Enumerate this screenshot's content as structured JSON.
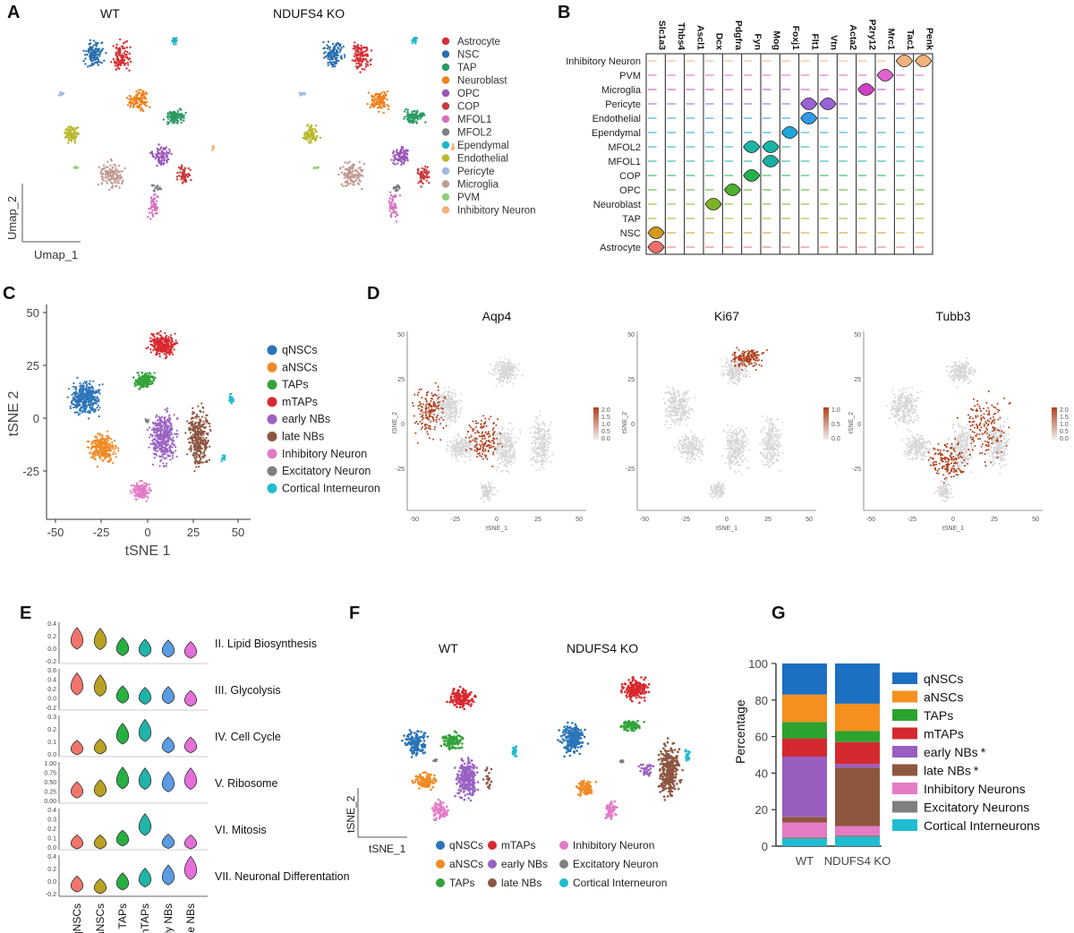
{
  "panels": {
    "A": {
      "label": "A",
      "titles": [
        "WT",
        "NDUFS4 KO"
      ],
      "xlabel": "Umap_1",
      "ylabel": "Umap_2",
      "legend": [
        {
          "name": "Astrocyte",
          "color": "#d62e35"
        },
        {
          "name": "NSC",
          "color": "#2a6fae"
        },
        {
          "name": "TAP",
          "color": "#2a9a62"
        },
        {
          "name": "Neuroblast",
          "color": "#f07f1a"
        },
        {
          "name": "OPC",
          "color": "#9a55b8"
        },
        {
          "name": "COP",
          "color": "#c93a3a"
        },
        {
          "name": "MFOL1",
          "color": "#d66fbf"
        },
        {
          "name": "MFOL2",
          "color": "#7b7f82"
        },
        {
          "name": "Ependymal",
          "color": "#20b6c6"
        },
        {
          "name": "Endothelial",
          "color": "#b7b92c"
        },
        {
          "name": "Pericyte",
          "color": "#9fbadf"
        },
        {
          "name": "Microglia",
          "color": "#c19b92"
        },
        {
          "name": "PVM",
          "color": "#8fd07a"
        },
        {
          "name": "Inhibitory Neuron",
          "color": "#f2b27a"
        }
      ]
    },
    "B": {
      "label": "B",
      "genes": [
        "Slc1a3",
        "Thbs4",
        "Ascl1",
        "Dcx",
        "Pdgfra",
        "Fyn",
        "Mog",
        "Foxj1",
        "Flt1",
        "Vtn",
        "Acta2",
        "P2ry12",
        "Mrc1",
        "Tac1",
        "Penk"
      ],
      "rows": [
        {
          "name": "Inhibitory Neuron",
          "color": "#f2b27a",
          "peaks": [
            14,
            13
          ]
        },
        {
          "name": "PVM",
          "color": "#e063d0",
          "peaks": [
            12
          ]
        },
        {
          "name": "Microglia",
          "color": "#d13fc4",
          "peaks": [
            11
          ]
        },
        {
          "name": "Pericyte",
          "color": "#9a62d6",
          "peaks": [
            9,
            8
          ]
        },
        {
          "name": "Endothelial",
          "color": "#2f9be6",
          "peaks": [
            8
          ]
        },
        {
          "name": "Ependymal",
          "color": "#1fa7d9",
          "peaks": [
            7
          ]
        },
        {
          "name": "MFOL2",
          "color": "#1bb5a6",
          "peaks": [
            6,
            5
          ]
        },
        {
          "name": "MFOL1",
          "color": "#19b0a0",
          "peaks": [
            6
          ]
        },
        {
          "name": "COP",
          "color": "#22b24c",
          "peaks": [
            5
          ]
        },
        {
          "name": "OPC",
          "color": "#4caf2e",
          "peaks": [
            4
          ]
        },
        {
          "name": "Neuroblast",
          "color": "#7cb327",
          "peaks": [
            3
          ]
        },
        {
          "name": "TAP",
          "color": "#a8a92a",
          "peaks": []
        },
        {
          "name": "NSC",
          "color": "#d59a1c",
          "peaks": [
            0
          ]
        },
        {
          "name": "Astrocyte",
          "color": "#ee6f6a",
          "peaks": [
            0
          ]
        }
      ]
    },
    "C": {
      "label": "C",
      "xlabel": "tSNE 1",
      "ylabel": "tSNE 2",
      "xticks": [
        "-50",
        "-25",
        "0",
        "25",
        "50"
      ],
      "yticks": [
        "50",
        "25",
        "0",
        "-25"
      ],
      "legend": [
        {
          "name": "qNSCs",
          "color": "#2b74b8"
        },
        {
          "name": "aNSCs",
          "color": "#f08a24"
        },
        {
          "name": "TAPs",
          "color": "#34a33a"
        },
        {
          "name": "mTAPs",
          "color": "#d8282d"
        },
        {
          "name": "early NBs",
          "color": "#9a63c3"
        },
        {
          "name": "late NBs",
          "color": "#8c5641"
        },
        {
          "name": "Inhibitory Neuron",
          "color": "#e37ac6"
        },
        {
          "name": "Excitatory Neuron",
          "color": "#7f7f7f"
        },
        {
          "name": "Cortical Interneuron",
          "color": "#20bccf"
        }
      ]
    },
    "D": {
      "label": "D",
      "subtitles": [
        "Aqp4",
        "Ki67",
        "Tubb3"
      ],
      "xlabel": "tSNE_1",
      "ylabel": "tSNE_2",
      "xticks": [
        "-50",
        "-25",
        "0",
        "25",
        "50"
      ],
      "yticks": [
        "50",
        "25",
        "0",
        "-25"
      ],
      "colorbars": [
        [
          "2.0",
          "1.5",
          "1.0",
          "0.5",
          "0.0"
        ],
        [
          "1.0",
          "0.5",
          "0.0"
        ],
        [
          "2.0",
          "1.5",
          "1.0",
          "0.5",
          "0.0"
        ]
      ],
      "bar_color": "#b0401d"
    },
    "E": {
      "label": "E",
      "categories": [
        "qNSCs",
        "aNSCs",
        "TAPs",
        "mTAPs",
        "early NBs",
        "late NBs"
      ],
      "colors": [
        "#f0756b",
        "#b9a122",
        "#27b041",
        "#1fb4a7",
        "#5a9be3",
        "#e56fd9"
      ],
      "rows": [
        {
          "label": "II. Lipid Biosynthesis",
          "yticks": [
            "0.4",
            "0.2",
            "0.0",
            "-0.2"
          ],
          "levels": [
            0.62,
            0.6,
            0.36,
            0.32,
            0.3,
            0.26
          ]
        },
        {
          "label": "III. Glycolysis",
          "yticks": [
            "0.6",
            "0.4",
            "0.2",
            "0.0",
            "-0.2"
          ],
          "levels": [
            0.65,
            0.6,
            0.32,
            0.28,
            0.3,
            0.2
          ]
        },
        {
          "label": "IV. Cell Cycle",
          "yticks": [
            "0.3",
            "0.2",
            "0.1",
            "0.0"
          ],
          "levels": [
            0.12,
            0.15,
            0.55,
            0.65,
            0.2,
            0.2
          ]
        },
        {
          "label": "V. Ribosome",
          "yticks": [
            "1.00",
            "0.75",
            "0.50",
            "0.25",
            "0.00"
          ],
          "levels": [
            0.25,
            0.3,
            0.62,
            0.6,
            0.5,
            0.6
          ]
        },
        {
          "label": "VI. Mitosis",
          "yticks": [
            "0.4",
            "0.3",
            "0.2",
            "0.1",
            "0.0"
          ],
          "levels": [
            0.08,
            0.08,
            0.2,
            0.62,
            0.1,
            0.08
          ]
        },
        {
          "label": "VII. Neuronal Differentation",
          "yticks": [
            "0.4",
            "0.2",
            "0.0",
            "-0.2"
          ],
          "levels": [
            0.22,
            0.15,
            0.3,
            0.42,
            0.5,
            0.72
          ]
        }
      ]
    },
    "F": {
      "label": "F",
      "titles": [
        "WT",
        "NDUFS4 KO"
      ],
      "xlabel": "tSNE_1",
      "ylabel": "tSNE_2",
      "legend": [
        {
          "name": "qNSCs",
          "color": "#2b74b8"
        },
        {
          "name": "mTAPs",
          "color": "#d8282d"
        },
        {
          "name": "Inhibitory Neuron",
          "color": "#e37ac6"
        },
        {
          "name": "aNSCs",
          "color": "#f08a24"
        },
        {
          "name": "early NBs",
          "color": "#9a63c3"
        },
        {
          "name": "Excitatory Neuron",
          "color": "#7f7f7f"
        },
        {
          "name": "TAPs",
          "color": "#34a33a"
        },
        {
          "name": "late NBs",
          "color": "#8c5641"
        },
        {
          "name": "Cortical Interneuron",
          "color": "#20bccf"
        }
      ]
    },
    "G": {
      "label": "G",
      "ylabel": "Percentage",
      "yticks": [
        "100",
        "80",
        "60",
        "40",
        "20",
        "0"
      ],
      "legend": [
        {
          "name": "qNSCs",
          "color": "#1d6fc2"
        },
        {
          "name": "aNSCs",
          "color": "#f5901e"
        },
        {
          "name": "TAPs",
          "color": "#2ca32f"
        },
        {
          "name": "mTAPs",
          "color": "#d42a2f"
        },
        {
          "name": "early NBs",
          "color": "#9a5dc0",
          "star": "*"
        },
        {
          "name": "late NBs",
          "color": "#8d563e",
          "star": "*"
        },
        {
          "name": "Inhibitory Neurons",
          "color": "#e57ac6"
        },
        {
          "name": "Excitatory Neurons",
          "color": "#7f7f7f"
        },
        {
          "name": "Cortical Interneurons",
          "color": "#1fbcd2"
        }
      ]
    }
  },
  "chart_data": [
    {
      "type": "bar",
      "title": "",
      "xlabel": "",
      "ylabel": "Percentage",
      "ylim": [
        0,
        100
      ],
      "stacked": true,
      "categories": [
        "WT",
        "NDUFS4 KO"
      ],
      "series": [
        {
          "name": "Cortical Interneurons",
          "values": [
            4,
            5
          ]
        },
        {
          "name": "Excitatory Neurons",
          "values": [
            1,
            1
          ]
        },
        {
          "name": "Inhibitory Neurons",
          "values": [
            8,
            5
          ]
        },
        {
          "name": "late NBs",
          "values": [
            3,
            32
          ]
        },
        {
          "name": "early NBs",
          "values": [
            33,
            2
          ]
        },
        {
          "name": "mTAPs",
          "values": [
            10,
            12
          ]
        },
        {
          "name": "TAPs",
          "values": [
            9,
            6
          ]
        },
        {
          "name": "aNSCs",
          "values": [
            15,
            15
          ]
        },
        {
          "name": "qNSCs",
          "values": [
            17,
            22
          ]
        }
      ]
    }
  ]
}
